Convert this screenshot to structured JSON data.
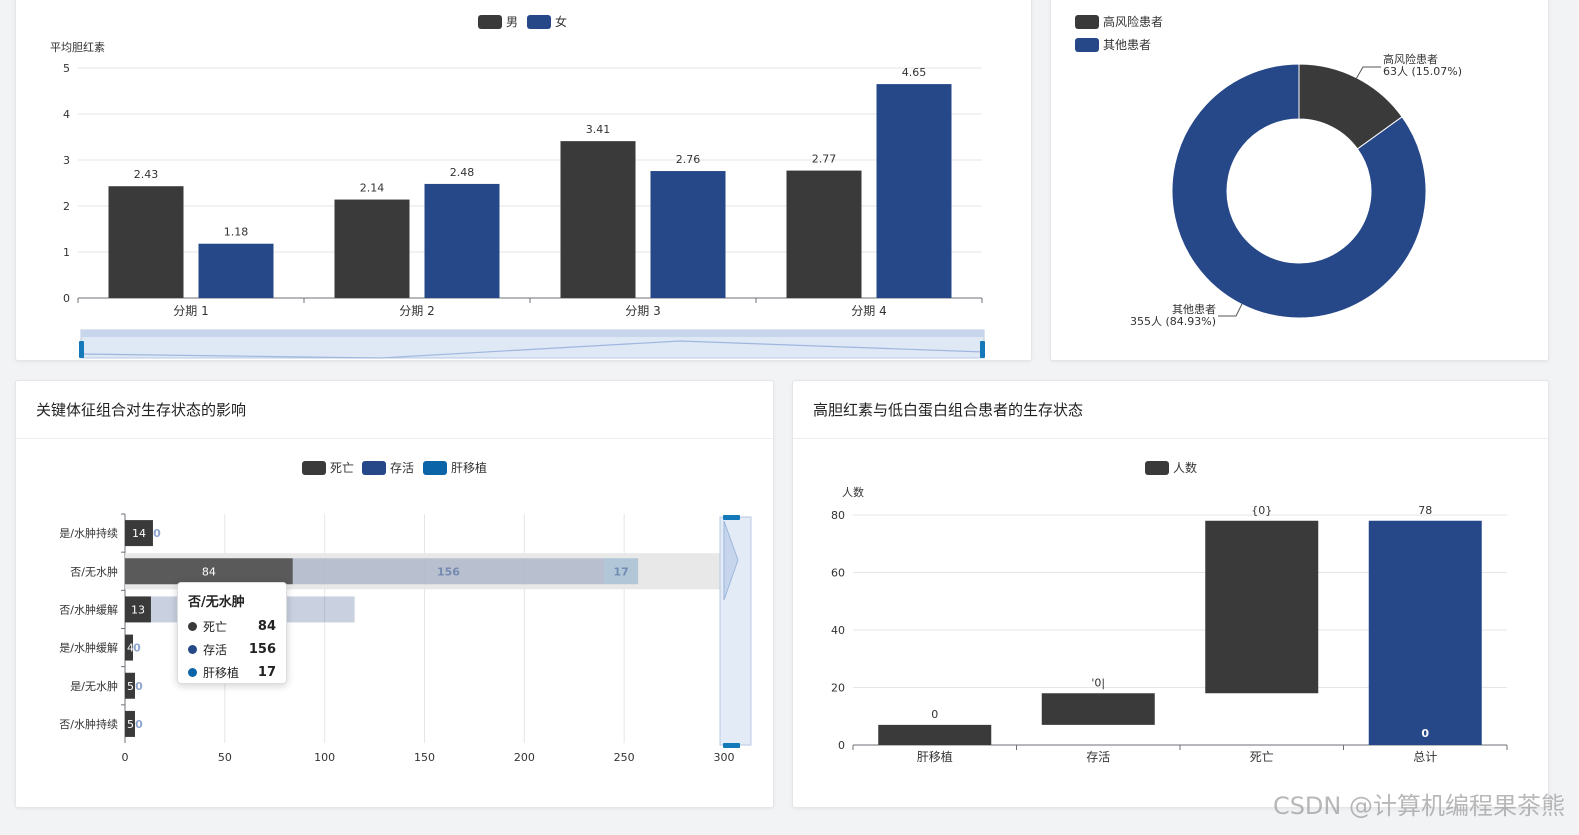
{
  "colors": {
    "dark": "#3a3a3a",
    "blue": "#264889",
    "teal": "#0c64a8",
    "grid": "#e6e6e6",
    "axis": "#6e7079"
  },
  "chart_data": [
    {
      "id": "bilirubin",
      "type": "bar",
      "title": "",
      "ylabel": "平均胆红素",
      "ylim": [
        0,
        5
      ],
      "yticks": [
        0,
        1,
        2,
        3,
        4,
        5
      ],
      "categories": [
        "分期 1",
        "分期 2",
        "分期 3",
        "分期 4"
      ],
      "series": [
        {
          "name": "男",
          "values": [
            2.43,
            2.14,
            3.41,
            2.77
          ]
        },
        {
          "name": "女",
          "values": [
            1.18,
            2.48,
            2.76,
            4.65
          ]
        }
      ],
      "legend": "top-center",
      "grid": true
    },
    {
      "id": "risk",
      "type": "pie",
      "title": "",
      "legend": "top-left",
      "slices": [
        {
          "name": "高风险患者",
          "value": 63,
          "label": "63人 (15.07%)"
        },
        {
          "name": "其他患者",
          "value": 355,
          "label": "355人 (84.93%)"
        }
      ]
    },
    {
      "id": "features",
      "type": "bar",
      "orientation": "horizontal",
      "title": "关键体征组合对生存状态的影响",
      "xlim": [
        0,
        300
      ],
      "xticks": [
        0,
        50,
        100,
        150,
        200,
        250,
        300
      ],
      "categories": [
        "是/水肿持续",
        "否/无水肿",
        "否/水肿缓解",
        "是/水肿缓解",
        "是/无水肿",
        "否/水肿持续"
      ],
      "series": [
        {
          "name": "死亡",
          "values": [
            14,
            84,
            13,
            4,
            5,
            5
          ]
        },
        {
          "name": "存活",
          "values": [
            0,
            156,
            102,
            0,
            0,
            0
          ]
        },
        {
          "name": "肝移植",
          "values": [
            0,
            17,
            0,
            0,
            0,
            0
          ]
        }
      ],
      "legend": "top-center",
      "grid": true,
      "tooltip": {
        "title": "否/无水肿",
        "rows": [
          {
            "name": "死亡",
            "value": "84"
          },
          {
            "name": "存活",
            "value": "156"
          },
          {
            "name": "肝移植",
            "value": "17"
          }
        ]
      }
    },
    {
      "id": "waterfall",
      "type": "bar",
      "subtype": "waterfall",
      "title": "高胆红素与低白蛋白组合患者的生存状态",
      "ylabel": "人数",
      "ylim": [
        0,
        80
      ],
      "yticks": [
        0,
        20,
        40,
        60,
        80
      ],
      "categories": [
        "肝移植",
        "存活",
        "死亡",
        "总计"
      ],
      "series": [
        {
          "name": "人数",
          "bottoms": [
            0,
            7,
            18,
            0
          ],
          "tops": [
            7,
            18,
            78,
            78
          ]
        }
      ],
      "data_labels": [
        "0",
        "'0|",
        "{0}",
        "78"
      ],
      "extra_label": "0",
      "legend": "top-center",
      "grid": true
    }
  ],
  "watermark": "CSDN @计算机编程果茶熊"
}
